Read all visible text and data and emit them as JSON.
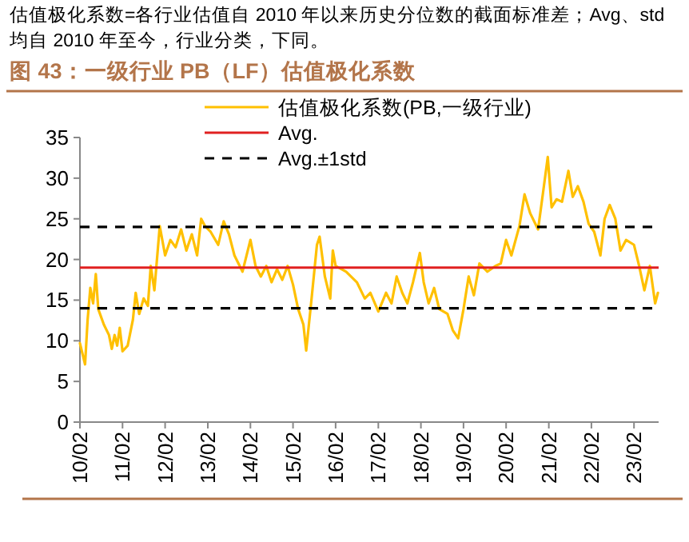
{
  "chart_data": {
    "type": "line",
    "title": "图 43：一级行业 PB（LF）估值极化系数",
    "annotations": [
      "估值极化系数=各行业估值自 2010 年以来历史分位数的截面标准差；Avg、std 均自 2010 年至今，行业分类，下同。"
    ],
    "series": [
      {
        "name": "估值极化系数(PB,一级行业)",
        "color": "#ffc000",
        "x": [
          "2010-02-01",
          "2010-03-17",
          "2010-04-08",
          "2010-05-01",
          "2010-05-25",
          "2010-06-17",
          "2010-07-08",
          "2010-08-25",
          "2010-10-08",
          "2010-11-01",
          "2010-11-25",
          "2010-12-17",
          "2011-01-08",
          "2011-02-01",
          "2011-03-17",
          "2011-05-01",
          "2011-05-25",
          "2011-06-24",
          "2011-08-01",
          "2011-09-06",
          "2011-10-01",
          "2011-11-01",
          "2011-12-17",
          "2012-02-01",
          "2012-03-17",
          "2012-05-01",
          "2012-06-17",
          "2012-08-01",
          "2012-09-17",
          "2012-11-01",
          "2012-12-06",
          "2013-01-08",
          "2013-02-25",
          "2013-05-01",
          "2013-06-17",
          "2013-08-01",
          "2013-09-17",
          "2013-11-25",
          "2014-02-01",
          "2014-03-17",
          "2014-05-01",
          "2014-06-17",
          "2014-08-01",
          "2014-09-17",
          "2014-11-01",
          "2014-12-17",
          "2015-02-01",
          "2015-03-17",
          "2015-05-01",
          "2015-05-25",
          "2015-07-08",
          "2015-08-25",
          "2015-09-17",
          "2015-11-01",
          "2015-12-17",
          "2016-01-08",
          "2016-02-01",
          "2016-05-01",
          "2016-08-01",
          "2016-10-08",
          "2016-11-25",
          "2017-02-01",
          "2017-04-08",
          "2017-05-25",
          "2017-07-08",
          "2017-08-25",
          "2017-10-08",
          "2017-11-25",
          "2018-01-23",
          "2018-02-25",
          "2018-04-08",
          "2018-05-25",
          "2018-07-08",
          "2018-09-17",
          "2018-11-01",
          "2018-12-17",
          "2019-02-01",
          "2019-03-17",
          "2019-05-01",
          "2019-06-17",
          "2019-08-25",
          "2019-11-01",
          "2019-12-17",
          "2020-02-01",
          "2020-03-17",
          "2020-05-25",
          "2020-07-08",
          "2020-08-25",
          "2020-11-01",
          "2020-12-17",
          "2021-01-23",
          "2021-02-25",
          "2021-04-08",
          "2021-05-25",
          "2021-07-19",
          "2021-08-25",
          "2021-10-08",
          "2021-11-25",
          "2022-01-08",
          "2022-02-25",
          "2022-04-19",
          "2022-05-25",
          "2022-07-08",
          "2022-08-25",
          "2022-10-08",
          "2022-11-25",
          "2023-02-01",
          "2023-03-17",
          "2023-05-01",
          "2023-06-17",
          "2023-08-01",
          "2023-08-25"
        ],
        "values": [
          9.7,
          7.1,
          12.6,
          16.5,
          14.6,
          18.2,
          13.9,
          12,
          10.7,
          9,
          10.7,
          9.4,
          11.6,
          8.7,
          9.4,
          12.6,
          15.9,
          13.3,
          15.2,
          14.3,
          19.2,
          16.2,
          24.1,
          20.5,
          22.4,
          21.5,
          23.7,
          21.1,
          23.1,
          20.5,
          25,
          24.1,
          23.4,
          21.8,
          24.7,
          23.1,
          20.5,
          18.5,
          22.4,
          19.2,
          17.9,
          19.2,
          17.2,
          18.8,
          17.5,
          19.2,
          16.9,
          13.9,
          12,
          8.8,
          14.9,
          21.8,
          22.8,
          17.9,
          15.2,
          21.1,
          19.2,
          18.5,
          17.2,
          15.2,
          15.9,
          13.6,
          15.9,
          14.6,
          17.9,
          15.9,
          14.6,
          17.2,
          20.8,
          17.2,
          14.6,
          16.5,
          13.9,
          13.3,
          11.3,
          10.3,
          13.9,
          17.9,
          15.6,
          19.5,
          18.5,
          19.2,
          19.5,
          22.4,
          20.5,
          24.1,
          28,
          25.7,
          23.7,
          28.6,
          32.6,
          26.4,
          27.4,
          27.1,
          30.9,
          27.7,
          29,
          27.1,
          24.4,
          23.4,
          20.5,
          25,
          26.7,
          25,
          21.1,
          22.4,
          21.8,
          19.2,
          16.2,
          19.2,
          14.6,
          15.9
        ]
      }
    ],
    "ref_lines": [
      {
        "axis": "y",
        "value": 19,
        "label": "Avg.",
        "color": "#e02020",
        "line_style": "solid"
      },
      {
        "axis": "y",
        "value": 24,
        "label": "Avg.±1std",
        "color": "#000000",
        "line_style": "dashed"
      },
      {
        "axis": "y",
        "value": 14,
        "color": "#000000",
        "line_style": "dashed"
      }
    ],
    "xlim": [
      "2010-02-01",
      "2023-08-31"
    ],
    "xticks": [
      {
        "value": "2010-02-01",
        "label": "10/02"
      },
      {
        "value": "2011-02-01",
        "label": "11/02"
      },
      {
        "value": "2012-02-01",
        "label": "12/02"
      },
      {
        "value": "2013-02-01",
        "label": "13/02"
      },
      {
        "value": "2014-02-01",
        "label": "14/02"
      },
      {
        "value": "2015-02-01",
        "label": "15/02"
      },
      {
        "value": "2016-02-01",
        "label": "16/02"
      },
      {
        "value": "2017-02-01",
        "label": "17/02"
      },
      {
        "value": "2018-02-01",
        "label": "18/02"
      },
      {
        "value": "2019-02-01",
        "label": "19/02"
      },
      {
        "value": "2020-02-01",
        "label": "20/02"
      },
      {
        "value": "2021-02-01",
        "label": "21/02"
      },
      {
        "value": "2022-02-01",
        "label": "22/02"
      },
      {
        "value": "2023-02-01",
        "label": "23/02"
      }
    ],
    "ylim": [
      0,
      35
    ],
    "yticks": [
      0,
      5,
      10,
      15,
      20,
      25,
      30,
      35
    ],
    "legend": "top",
    "grid": false
  }
}
